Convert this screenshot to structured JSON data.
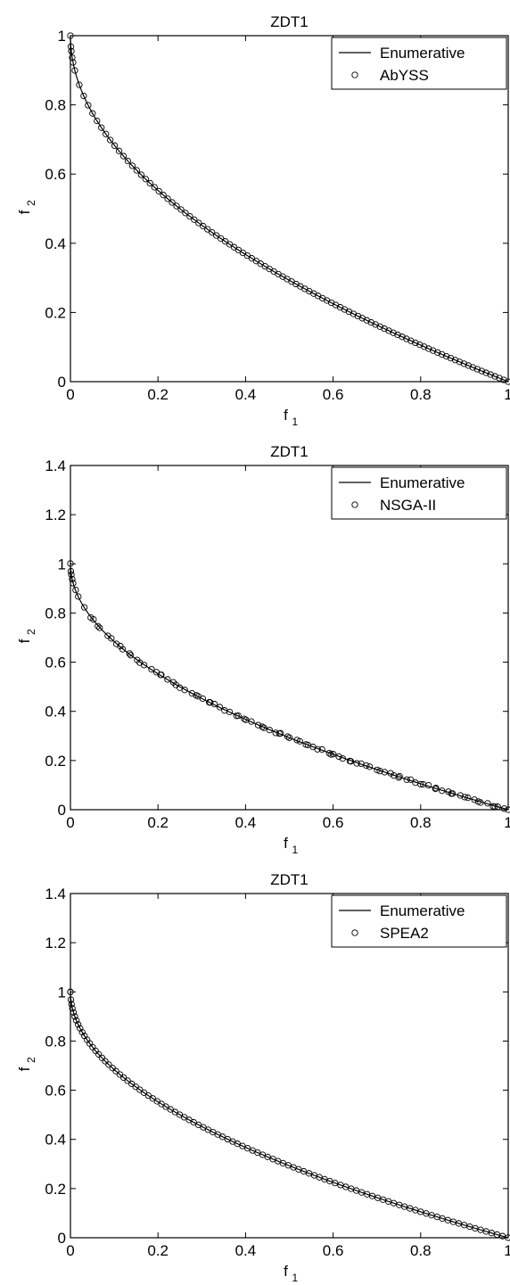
{
  "chart_data": [
    {
      "type": "scatter",
      "title": "ZDT1",
      "xlabel": "f",
      "xlabel_sub": "1",
      "ylabel": "f",
      "ylabel_sub": "2",
      "xlim": [
        0,
        1
      ],
      "ylim": [
        0,
        1
      ],
      "xticks": [
        "0",
        "0.2",
        "0.4",
        "0.6",
        "0.8",
        "1"
      ],
      "yticks": [
        "0",
        "0.2",
        "0.4",
        "0.6",
        "0.8",
        "1"
      ],
      "grid": false,
      "legend_position": "top-right",
      "series": [
        {
          "name": "Enumerative",
          "kind": "line",
          "color": "#000000",
          "function": "f2 = 1 - sqrt(f1)",
          "x": [
            0,
            0.01,
            0.02,
            0.05,
            0.1,
            0.15,
            0.2,
            0.3,
            0.4,
            0.5,
            0.6,
            0.7,
            0.8,
            0.9,
            1.0
          ],
          "y": [
            1,
            0.9,
            0.859,
            0.776,
            0.684,
            0.613,
            0.553,
            0.452,
            0.368,
            0.293,
            0.225,
            0.163,
            0.106,
            0.051,
            0
          ]
        },
        {
          "name": "AbYSS",
          "kind": "markers",
          "marker": "open-circle",
          "color": "#000000",
          "count": 100,
          "distribution": "uniform in f1 from 0 to 1, on the front"
        }
      ]
    },
    {
      "type": "scatter",
      "title": "ZDT1",
      "xlabel": "f",
      "xlabel_sub": "1",
      "ylabel": "f",
      "ylabel_sub": "2",
      "xlim": [
        0,
        1
      ],
      "ylim": [
        0,
        1.4
      ],
      "xticks": [
        "0",
        "0.2",
        "0.4",
        "0.6",
        "0.8",
        "1"
      ],
      "yticks": [
        "0",
        "0.2",
        "0.4",
        "0.6",
        "0.8",
        "1",
        "1.2",
        "1.4"
      ],
      "grid": false,
      "legend_position": "top-right",
      "series": [
        {
          "name": "Enumerative",
          "kind": "line",
          "color": "#000000",
          "function": "f2 = 1 - sqrt(f1)",
          "x": [
            0,
            0.01,
            0.02,
            0.05,
            0.1,
            0.15,
            0.2,
            0.3,
            0.4,
            0.5,
            0.6,
            0.7,
            0.8,
            0.9,
            1.0
          ],
          "y": [
            1,
            0.9,
            0.859,
            0.776,
            0.684,
            0.613,
            0.553,
            0.452,
            0.368,
            0.293,
            0.225,
            0.163,
            0.106,
            0.051,
            0
          ]
        },
        {
          "name": "NSGA-II",
          "kind": "markers",
          "marker": "open-circle",
          "color": "#000000",
          "count": 100,
          "distribution": "irregular in f1 from 0 to 1, on the front"
        }
      ]
    },
    {
      "type": "scatter",
      "title": "ZDT1",
      "xlabel": "f",
      "xlabel_sub": "1",
      "ylabel": "f",
      "ylabel_sub": "2",
      "xlim": [
        0,
        1
      ],
      "ylim": [
        0,
        1.4
      ],
      "xticks": [
        "0",
        "0.2",
        "0.4",
        "0.6",
        "0.8",
        "1"
      ],
      "yticks": [
        "0",
        "0.2",
        "0.4",
        "0.6",
        "0.8",
        "1",
        "1.2",
        "1.4"
      ],
      "grid": false,
      "legend_position": "top-right",
      "series": [
        {
          "name": "Enumerative",
          "kind": "line",
          "color": "#000000",
          "function": "f2 = 1 - sqrt(f1)",
          "x": [
            0,
            0.01,
            0.02,
            0.05,
            0.1,
            0.15,
            0.2,
            0.3,
            0.4,
            0.5,
            0.6,
            0.7,
            0.8,
            0.9,
            1.0
          ],
          "y": [
            1,
            0.9,
            0.859,
            0.776,
            0.684,
            0.613,
            0.553,
            0.452,
            0.368,
            0.293,
            0.225,
            0.163,
            0.106,
            0.051,
            0
          ]
        },
        {
          "name": "SPEA2",
          "kind": "markers",
          "marker": "open-circle",
          "color": "#000000",
          "count": 100,
          "distribution": "uniform along the front"
        }
      ]
    }
  ]
}
